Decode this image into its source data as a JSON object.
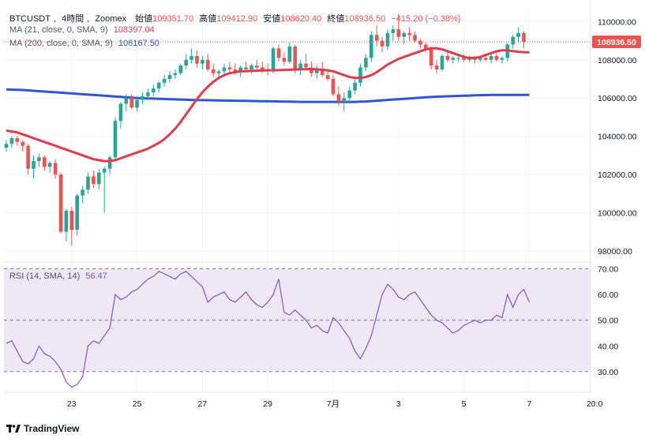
{
  "chart_data": {
    "type": "candlestick",
    "symbol": "BTCUSDT",
    "interval": "4時間",
    "exchange": "Zoomex",
    "ohlc_labels": {
      "open_label": "始値",
      "open": "109351.70",
      "high_label": "高値",
      "high": "109412.90",
      "low_label": "安値",
      "low": "108620.40",
      "close_label": "終値",
      "close": "108936.50",
      "change": "−415.20 (−0.38%)"
    },
    "ma21_label": "MA (21, close, 0, SMA, 9)",
    "ma21_value": "108397.04",
    "ma200_label": "MA (200, close, 0, SMA, 9)",
    "ma200_value": "106167.50",
    "price_axis": {
      "ticks": [
        110000,
        108000,
        106000,
        104000,
        102000,
        100000,
        98000
      ],
      "tick_labels": [
        "110000.00",
        "108000.00",
        "106000.00",
        "104000.00",
        "102000.00",
        "100000.00",
        "98000.00"
      ],
      "ylim": [
        97500,
        110800
      ],
      "last_price_label": "108936.50"
    },
    "x_axis": {
      "labels": [
        "23",
        "25",
        "27",
        "29",
        "7月",
        "3",
        "5",
        "7",
        "20:0"
      ],
      "label_bar_index": [
        12,
        24,
        36,
        48,
        60,
        72,
        84,
        96,
        108
      ]
    },
    "candles": [
      [
        103400,
        103800,
        103200,
        103600
      ],
      [
        103600,
        104000,
        103400,
        103900
      ],
      [
        103900,
        104000,
        103500,
        103700
      ],
      [
        103700,
        103800,
        103200,
        103500
      ],
      [
        103500,
        103600,
        102000,
        102300
      ],
      [
        102300,
        103000,
        101800,
        102700
      ],
      [
        102700,
        103100,
        102400,
        102900
      ],
      [
        102900,
        103000,
        102200,
        102400
      ],
      [
        102400,
        102700,
        102100,
        102600
      ],
      [
        102600,
        102800,
        101800,
        102000
      ],
      [
        102000,
        102100,
        98900,
        99000
      ],
      [
        99000,
        100200,
        98500,
        100100
      ],
      [
        100100,
        100300,
        98300,
        99100
      ],
      [
        99100,
        101000,
        98800,
        100900
      ],
      [
        100900,
        101400,
        100500,
        101200
      ],
      [
        101200,
        102100,
        101000,
        101900
      ],
      [
        101900,
        102200,
        101300,
        101500
      ],
      [
        101500,
        102300,
        101200,
        102100
      ],
      [
        102100,
        102400,
        100000,
        102300
      ],
      [
        102300,
        103000,
        102000,
        102900
      ],
      [
        102900,
        105000,
        102700,
        104800
      ],
      [
        104800,
        105800,
        104400,
        105700
      ],
      [
        105700,
        106200,
        105300,
        106000
      ],
      [
        106000,
        106200,
        105400,
        105500
      ],
      [
        105500,
        106100,
        105300,
        105900
      ],
      [
        105900,
        106300,
        105700,
        106100
      ],
      [
        106100,
        106500,
        105900,
        106300
      ],
      [
        106300,
        106700,
        106100,
        106500
      ],
      [
        106500,
        106900,
        106300,
        106800
      ],
      [
        106800,
        107200,
        106600,
        107000
      ],
      [
        107000,
        107400,
        106800,
        107200
      ],
      [
        107200,
        107500,
        107000,
        107300
      ],
      [
        107300,
        107800,
        107200,
        107700
      ],
      [
        107700,
        108300,
        107500,
        108000
      ],
      [
        108000,
        108600,
        107800,
        108200
      ],
      [
        108200,
        108500,
        107600,
        107800
      ],
      [
        107800,
        108200,
        107500,
        108000
      ],
      [
        108000,
        108300,
        107400,
        107500
      ],
      [
        107500,
        107800,
        107100,
        107300
      ],
      [
        107300,
        107500,
        107000,
        107400
      ],
      [
        107400,
        107800,
        107200,
        107600
      ],
      [
        107600,
        107900,
        107300,
        107500
      ],
      [
        107500,
        107800,
        107200,
        107400
      ],
      [
        107400,
        107700,
        107100,
        107600
      ],
      [
        107600,
        107900,
        107400,
        107500
      ],
      [
        107500,
        107800,
        107300,
        107700
      ],
      [
        107700,
        108000,
        107400,
        107600
      ],
      [
        107600,
        107900,
        107300,
        107500
      ],
      [
        107500,
        107800,
        107200,
        107400
      ],
      [
        107400,
        108700,
        107300,
        108600
      ],
      [
        108600,
        108800,
        107900,
        108100
      ],
      [
        108100,
        108400,
        107700,
        107900
      ],
      [
        107900,
        108900,
        107800,
        108700
      ],
      [
        108700,
        108800,
        107300,
        107500
      ],
      [
        107500,
        108000,
        107200,
        107800
      ],
      [
        107800,
        108300,
        107500,
        107600
      ],
      [
        107600,
        107900,
        107100,
        107300
      ],
      [
        107300,
        107700,
        107000,
        107500
      ],
      [
        107500,
        107900,
        107100,
        107200
      ],
      [
        107200,
        107400,
        106900,
        107000
      ],
      [
        107000,
        107200,
        106100,
        106200
      ],
      [
        106200,
        106600,
        105600,
        105800
      ],
      [
        105800,
        106300,
        105300,
        106000
      ],
      [
        106000,
        106600,
        105700,
        106400
      ],
      [
        106400,
        107000,
        106200,
        106800
      ],
      [
        106800,
        107800,
        106600,
        107600
      ],
      [
        107600,
        108300,
        107400,
        108100
      ],
      [
        108100,
        109500,
        107900,
        109300
      ],
      [
        109300,
        109800,
        108700,
        109000
      ],
      [
        109000,
        109200,
        108400,
        108700
      ],
      [
        108700,
        109600,
        108500,
        109400
      ],
      [
        109400,
        109800,
        109000,
        109600
      ],
      [
        109600,
        110400,
        109000,
        109200
      ],
      [
        109200,
        109500,
        108800,
        109400
      ],
      [
        109400,
        109700,
        109000,
        109300
      ],
      [
        109300,
        109500,
        108900,
        109000
      ],
      [
        109000,
        109100,
        108600,
        108800
      ],
      [
        108800,
        108900,
        108400,
        108600
      ],
      [
        108600,
        108700,
        107500,
        107700
      ],
      [
        107700,
        108000,
        107300,
        107500
      ],
      [
        107500,
        108300,
        107400,
        108200
      ],
      [
        108200,
        108400,
        107900,
        108000
      ],
      [
        108000,
        108200,
        107800,
        108100
      ],
      [
        108100,
        108300,
        107900,
        108100
      ],
      [
        108100,
        108300,
        107900,
        108000
      ],
      [
        108000,
        108200,
        107900,
        108100
      ],
      [
        108100,
        108200,
        107800,
        108000
      ],
      [
        108000,
        108200,
        107900,
        108100
      ],
      [
        108100,
        108300,
        107900,
        108000
      ],
      [
        108000,
        108300,
        107800,
        108200
      ],
      [
        108200,
        108400,
        107900,
        108000
      ],
      [
        108000,
        108200,
        107800,
        108100
      ],
      [
        108100,
        108900,
        107900,
        108800
      ],
      [
        108800,
        109300,
        108600,
        109200
      ],
      [
        109200,
        109700,
        108900,
        109400
      ],
      [
        109400,
        109500,
        108600,
        108940
      ]
    ],
    "ma21": [
      104300,
      104250,
      104200,
      104100,
      104000,
      103900,
      103800,
      103700,
      103600,
      103500,
      103400,
      103300,
      103200,
      103100,
      103000,
      102900,
      102800,
      102750,
      102700,
      102700,
      102750,
      102850,
      102950,
      103050,
      103150,
      103250,
      103350,
      103500,
      103650,
      103850,
      104100,
      104400,
      104750,
      105150,
      105550,
      105950,
      106300,
      106600,
      106850,
      107050,
      107200,
      107300,
      107350,
      107400,
      107400,
      107420,
      107430,
      107440,
      107450,
      107450,
      107460,
      107470,
      107480,
      107490,
      107500,
      107510,
      107520,
      107500,
      107480,
      107450,
      107400,
      107300,
      107200,
      107100,
      107050,
      107050,
      107100,
      107200,
      107350,
      107550,
      107750,
      107900,
      108050,
      108150,
      108250,
      108350,
      108450,
      108550,
      108600,
      108600,
      108550,
      108450,
      108350,
      108250,
      108150,
      108100,
      108100,
      108150,
      108250,
      108350,
      108450,
      108500,
      108500,
      108450,
      108420,
      108400,
      108397
    ],
    "ma200": [
      106450,
      106440,
      106430,
      106420,
      106400,
      106380,
      106360,
      106340,
      106320,
      106300,
      106280,
      106260,
      106240,
      106220,
      106200,
      106180,
      106160,
      106140,
      106120,
      106100,
      106080,
      106060,
      106040,
      106020,
      106000,
      105990,
      105980,
      105970,
      105960,
      105950,
      105940,
      105930,
      105920,
      105910,
      105900,
      105895,
      105890,
      105885,
      105880,
      105875,
      105870,
      105865,
      105860,
      105855,
      105850,
      105845,
      105840,
      105835,
      105830,
      105825,
      105820,
      105815,
      105810,
      105805,
      105800,
      105800,
      105800,
      105800,
      105800,
      105800,
      105800,
      105800,
      105800,
      105800,
      105800,
      105810,
      105820,
      105840,
      105860,
      105880,
      105900,
      105920,
      105940,
      105960,
      105980,
      106000,
      106020,
      106040,
      106055,
      106070,
      106080,
      106090,
      106100,
      106110,
      106120,
      106130,
      106140,
      106150,
      106155,
      106160,
      106163,
      106165,
      106166,
      106167,
      106167.5,
      106167.5,
      106167.5
    ],
    "rsi_label": "RSI (14, SMA, 14)",
    "rsi_value": "56.47",
    "rsi_axis": {
      "ticks": [
        70,
        60,
        50,
        40,
        30
      ],
      "tick_labels": [
        "70.00",
        "60.00",
        "50.00",
        "40.00",
        "30.00"
      ],
      "ylim": [
        22,
        72
      ],
      "band": [
        30,
        70
      ]
    },
    "rsi": [
      41,
      42,
      38,
      34,
      33,
      35,
      40,
      37,
      36,
      34,
      31,
      26,
      24,
      25,
      28,
      40,
      42,
      41,
      44,
      47,
      60,
      58,
      59,
      61,
      62,
      64,
      66,
      67,
      69,
      68,
      67,
      66,
      68,
      69,
      67,
      65,
      63,
      57,
      59,
      60,
      61,
      58,
      57,
      59,
      61,
      58,
      56,
      55,
      57,
      60,
      66,
      53,
      52,
      54,
      52,
      50,
      47,
      48,
      46,
      45,
      51,
      49,
      46,
      43,
      38,
      35,
      39,
      44,
      52,
      60,
      64,
      62,
      59,
      58,
      60,
      61,
      58,
      55,
      52,
      50,
      49,
      47,
      45,
      46,
      48,
      49,
      50,
      49,
      50,
      50,
      52,
      51,
      60,
      55,
      60,
      62,
      57
    ]
  },
  "colors": {
    "up": "#26a69a",
    "down": "#ef5350",
    "ma21": "#e03c4c",
    "ma200": "#2f54d4",
    "rsi_line": "#7e57c2",
    "rsi_band_fill": "#ede7f6",
    "last_price_tag": "#ef5350"
  },
  "footer": {
    "brand": "TradingView"
  }
}
